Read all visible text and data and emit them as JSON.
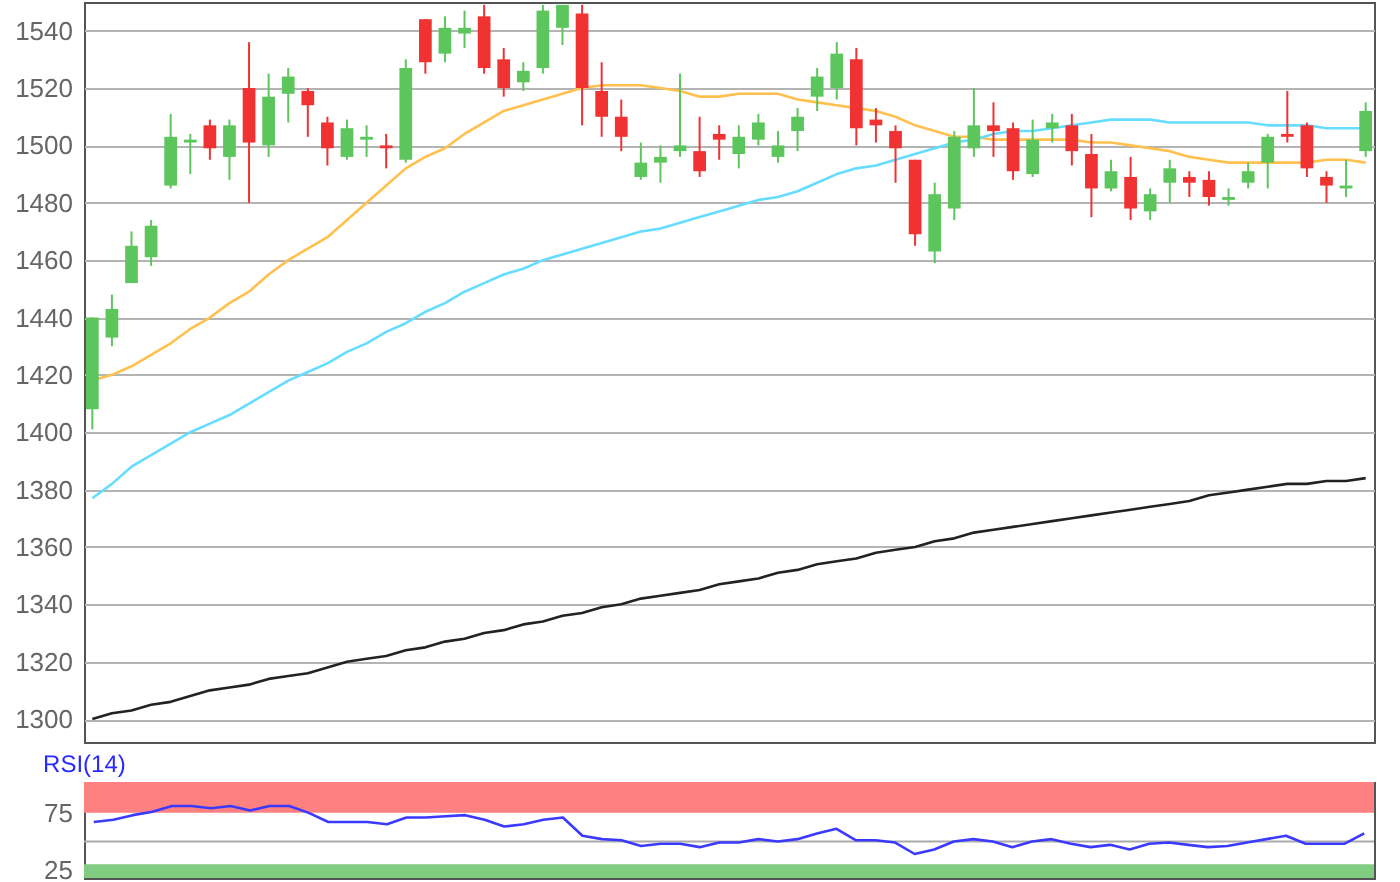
{
  "chart_data": [
    {
      "type": "candlestick",
      "categories": [
        null,
        null,
        null,
        null,
        null,
        null,
        null,
        null,
        null,
        null,
        null,
        null,
        null,
        null,
        null,
        null,
        null,
        null,
        null,
        null,
        null,
        null,
        null,
        null,
        null,
        null,
        null,
        null,
        null,
        null,
        null,
        null,
        null,
        null,
        null,
        null,
        null,
        null,
        null,
        null,
        null,
        null,
        null,
        null,
        null,
        null,
        null,
        null,
        null,
        null,
        null,
        null,
        null,
        null,
        null,
        null,
        null,
        null,
        null,
        null,
        null,
        null,
        null,
        null,
        null,
        null
      ],
      "ohlc": [
        [
          1408,
          1440,
          1401,
          1440
        ],
        [
          1433,
          1448,
          1430,
          1443
        ],
        [
          1452,
          1470,
          1452,
          1465
        ],
        [
          1461,
          1474,
          1458,
          1472
        ],
        [
          1486,
          1511,
          1485,
          1503
        ],
        [
          1501,
          1504,
          1490,
          1502
        ],
        [
          1507,
          1509,
          1495,
          1499
        ],
        [
          1496,
          1509,
          1488,
          1507
        ],
        [
          1520,
          1536,
          1480,
          1501
        ],
        [
          1500,
          1525,
          1496,
          1517
        ],
        [
          1518,
          1527,
          1508,
          1524
        ],
        [
          1519,
          1520,
          1503,
          1514
        ],
        [
          1508,
          1510,
          1493,
          1499
        ],
        [
          1496,
          1509,
          1495,
          1506
        ],
        [
          1502,
          1507,
          1496,
          1503
        ],
        [
          1500,
          1504,
          1492,
          1499
        ],
        [
          1495,
          1530,
          1494,
          1527
        ],
        [
          1544,
          1544,
          1525,
          1529
        ],
        [
          1532,
          1545,
          1529,
          1541
        ],
        [
          1539,
          1547,
          1534,
          1541
        ],
        [
          1545,
          1549,
          1525,
          1527
        ],
        [
          1530,
          1534,
          1517,
          1520
        ],
        [
          1522,
          1529,
          1519,
          1526
        ],
        [
          1527,
          1549,
          1525,
          1547
        ],
        [
          1541,
          1549,
          1535,
          1549
        ],
        [
          1546,
          1549,
          1507,
          1520
        ],
        [
          1519,
          1529,
          1503,
          1510
        ],
        [
          1510,
          1516,
          1498,
          1503
        ],
        [
          1489,
          1501,
          1488,
          1494
        ],
        [
          1494,
          1500,
          1487,
          1496
        ],
        [
          1498,
          1525,
          1496,
          1500
        ],
        [
          1498,
          1510,
          1489,
          1491
        ],
        [
          1504,
          1507,
          1495,
          1502
        ],
        [
          1497,
          1507,
          1492,
          1503
        ],
        [
          1502,
          1511,
          1500,
          1508
        ],
        [
          1496,
          1505,
          1494,
          1500
        ],
        [
          1505,
          1513,
          1498,
          1510
        ],
        [
          1517,
          1527,
          1512,
          1524
        ],
        [
          1520,
          1536,
          1516,
          1532
        ],
        [
          1530,
          1534,
          1500,
          1506
        ],
        [
          1509,
          1513,
          1501,
          1507
        ],
        [
          1505,
          1507,
          1487,
          1499
        ],
        [
          1495,
          1495,
          1465,
          1469
        ],
        [
          1463,
          1487,
          1459,
          1483
        ],
        [
          1478,
          1505,
          1474,
          1503
        ],
        [
          1499,
          1520,
          1496,
          1507
        ],
        [
          1507,
          1515,
          1496,
          1505
        ],
        [
          1506,
          1508,
          1488,
          1491
        ],
        [
          1490,
          1509,
          1489,
          1502
        ],
        [
          1506,
          1511,
          1501,
          1508
        ],
        [
          1507,
          1511,
          1493,
          1498
        ],
        [
          1497,
          1504,
          1475,
          1485
        ],
        [
          1485,
          1495,
          1484,
          1491
        ],
        [
          1489,
          1496,
          1474,
          1478
        ],
        [
          1477,
          1485,
          1474,
          1483
        ],
        [
          1487,
          1495,
          1480,
          1492
        ],
        [
          1489,
          1491,
          1482,
          1487
        ],
        [
          1488,
          1491,
          1479,
          1482
        ],
        [
          1481,
          1485,
          1479,
          1482
        ],
        [
          1487,
          1494,
          1485,
          1491
        ],
        [
          1494,
          1504,
          1485,
          1503
        ],
        [
          1504,
          1519,
          1501,
          1503
        ],
        [
          1507,
          1508,
          1489,
          1492
        ],
        [
          1489,
          1491,
          1480,
          1486
        ],
        [
          1485,
          1495,
          1482,
          1486
        ],
        [
          1498,
          1515,
          1496,
          1512
        ]
      ],
      "colors": [
        "#5cc65c",
        "#5cc65c",
        "#5cc65c",
        "#5cc65c",
        "#5cc65c",
        "#5cc65c",
        "#f03232",
        "#5cc65c",
        "#f03232",
        "#5cc65c",
        "#5cc65c",
        "#f03232",
        "#f03232",
        "#5cc65c",
        "#5cc65c",
        "#f03232",
        "#5cc65c",
        "#f03232",
        "#5cc65c",
        "#5cc65c",
        "#f03232",
        "#f03232",
        "#5cc65c",
        "#5cc65c",
        "#5cc65c",
        "#f03232",
        "#f03232",
        "#f03232",
        "#5cc65c",
        "#5cc65c",
        "#5cc65c",
        "#f03232",
        "#f03232",
        "#5cc65c",
        "#5cc65c",
        "#5cc65c",
        "#5cc65c",
        "#5cc65c",
        "#5cc65c",
        "#f03232",
        "#f03232",
        "#f03232",
        "#f03232",
        "#5cc65c",
        "#5cc65c",
        "#5cc65c",
        "#f03232",
        "#f03232",
        "#5cc65c",
        "#5cc65c",
        "#f03232",
        "#f03232",
        "#5cc65c",
        "#f03232",
        "#5cc65c",
        "#5cc65c",
        "#f03232",
        "#f03232",
        "#5cc65c",
        "#5cc65c",
        "#5cc65c",
        "#f03232",
        "#f03232",
        "#f03232",
        "#5cc65c",
        "#5cc65c"
      ],
      "series": [
        {
          "type": "line",
          "color": "#ffc04d",
          "values": [
            1418,
            1420,
            1423,
            1427,
            1431,
            1436,
            1440,
            1445,
            1449,
            1455,
            1460,
            1464,
            1468,
            1474,
            1480,
            1486,
            1492,
            1496,
            1499,
            1504,
            1508,
            1512,
            1514,
            1516,
            1518,
            1520,
            1521,
            1521,
            1521,
            1520,
            1519,
            1517,
            1517,
            1518,
            1518,
            1518,
            1516,
            1515,
            1514,
            1513,
            1512,
            1510,
            1507,
            1505,
            1503,
            1503,
            1502,
            1502,
            1502,
            1502,
            1502,
            1501,
            1501,
            1500,
            1499,
            1498,
            1496,
            1495,
            1494,
            1494,
            1494,
            1494,
            1494,
            1495,
            1495,
            1494
          ]
        },
        {
          "type": "line",
          "color": "#66ddff",
          "values": [
            1377,
            1382,
            1388,
            1392,
            1396,
            1400,
            1403,
            1406,
            1410,
            1414,
            1418,
            1421,
            1424,
            1428,
            1431,
            1435,
            1438,
            1442,
            1445,
            1449,
            1452,
            1455,
            1457,
            1460,
            1462,
            1464,
            1466,
            1468,
            1470,
            1471,
            1473,
            1475,
            1477,
            1479,
            1481,
            1482,
            1484,
            1487,
            1490,
            1492,
            1493,
            1495,
            1497,
            1499,
            1501,
            1502,
            1504,
            1505,
            1505,
            1506,
            1507,
            1508,
            1509,
            1509,
            1509,
            1508,
            1508,
            1508,
            1508,
            1508,
            1507,
            1507,
            1507,
            1506,
            1506,
            1506
          ]
        },
        {
          "type": "line",
          "color": "#222222",
          "values": [
            1300,
            1302,
            1303,
            1305,
            1306,
            1308,
            1310,
            1311,
            1312,
            1314,
            1315,
            1316,
            1318,
            1320,
            1321,
            1322,
            1324,
            1325,
            1327,
            1328,
            1330,
            1331,
            1333,
            1334,
            1336,
            1337,
            1339,
            1340,
            1342,
            1343,
            1344,
            1345,
            1347,
            1348,
            1349,
            1351,
            1352,
            1354,
            1355,
            1356,
            1358,
            1359,
            1360,
            1362,
            1363,
            1365,
            1366,
            1367,
            1368,
            1369,
            1370,
            1371,
            1372,
            1373,
            1374,
            1375,
            1376,
            1378,
            1379,
            1380,
            1381,
            1382,
            1382,
            1383,
            1383,
            1384
          ]
        }
      ],
      "ylim": [
        1292,
        1550
      ],
      "yticks": [
        1300,
        1320,
        1340,
        1360,
        1380,
        1400,
        1420,
        1440,
        1460,
        1480,
        1500,
        1520,
        1540
      ],
      "grid": "y",
      "tick_labels": "y"
    },
    {
      "type": "line",
      "title": "RSI(14)",
      "categories": [
        null,
        null,
        null,
        null,
        null,
        null,
        null,
        null,
        null,
        null,
        null,
        null,
        null,
        null,
        null,
        null,
        null,
        null,
        null,
        null,
        null,
        null,
        null,
        null,
        null,
        null,
        null,
        null,
        null,
        null,
        null,
        null,
        null,
        null,
        null,
        null,
        null,
        null,
        null,
        null,
        null,
        null,
        null,
        null,
        null,
        null,
        null,
        null,
        null,
        null,
        null,
        null,
        null,
        null,
        null,
        null,
        null,
        null,
        null,
        null,
        null,
        null,
        null,
        null,
        null,
        null
      ],
      "series": [
        {
          "color": "#3a3aff",
          "values": [
            67,
            69,
            73,
            76,
            81,
            81,
            79,
            81,
            77,
            81,
            81,
            75,
            67,
            67,
            67,
            65,
            71,
            71,
            72,
            73,
            69,
            63,
            65,
            69,
            71,
            55,
            52,
            51,
            46,
            48,
            48,
            45,
            49,
            49,
            52,
            50,
            52,
            57,
            61,
            51,
            51,
            49,
            39,
            43,
            50,
            52,
            50,
            45,
            50,
            52,
            48,
            45,
            47,
            43,
            48,
            49,
            47,
            45,
            46,
            49,
            52,
            55,
            48,
            48,
            48,
            57
          ]
        }
      ],
      "ylim": [
        18,
        102
      ],
      "yticks": [
        25,
        75
      ],
      "tick_labels": "y",
      "ref_lines": [
        {
          "axis": "y",
          "value": 50,
          "color": "#aaaaaa"
        }
      ],
      "bands": [
        {
          "axis": "y",
          "from": 75,
          "to": 102,
          "color": "#ff8080"
        },
        {
          "axis": "y",
          "from": 18,
          "to": 30,
          "color": "#80cc80"
        }
      ]
    }
  ]
}
